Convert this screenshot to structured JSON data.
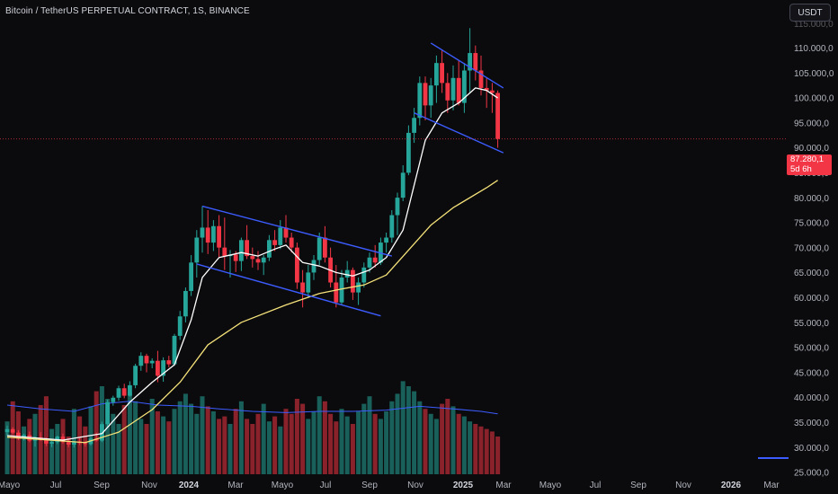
{
  "header": {
    "title": "Bitcoin / TetherUS PERPETUAL CONTRACT, 1S, BINANCE",
    "currency_button": "USDT"
  },
  "price_tag": {
    "price": "87.280,1",
    "countdown": "5d 6h",
    "color": "#f23645"
  },
  "colors": {
    "up": "#26a69a",
    "down": "#f23645",
    "ema_fast": "#ffffff",
    "ema_slow": "#f5e27a",
    "channel": "#3c5cff",
    "volume_ma": "#3c5cff"
  },
  "chart_data": {
    "type": "candlestick",
    "instrument": "Bitcoin / TetherUS PERPETUAL CONTRACT",
    "interval": "1S",
    "exchange": "BINANCE",
    "current_price": 87280.1,
    "y_axis_ticks": [
      "110.000,0",
      "105.000,0",
      "100.000,0",
      "95.000,0",
      "90.000,0",
      "85.000,0",
      "80.000,0",
      "75.000,0",
      "70.000,0",
      "65.000,0",
      "60.000,0",
      "55.000,0",
      "50.000,0",
      "45.000,0",
      "40.000,0",
      "35.000,0",
      "30.000,0",
      "25.000,0"
    ],
    "y_axis_partial_top": "115.000,0",
    "x_axis_ticks": [
      {
        "label": "Mayo",
        "bold": false
      },
      {
        "label": "Jul",
        "bold": false
      },
      {
        "label": "Sep",
        "bold": false
      },
      {
        "label": "Nov",
        "bold": false
      },
      {
        "label": "2024",
        "bold": true
      },
      {
        "label": "Mar",
        "bold": false
      },
      {
        "label": "Mayo",
        "bold": false
      },
      {
        "label": "Jul",
        "bold": false
      },
      {
        "label": "Sep",
        "bold": false
      },
      {
        "label": "Nov",
        "bold": false
      },
      {
        "label": "2025",
        "bold": true
      },
      {
        "label": "Mar",
        "bold": false
      },
      {
        "label": "Mayo",
        "bold": false
      },
      {
        "label": "Jul",
        "bold": false
      },
      {
        "label": "Sep",
        "bold": false
      },
      {
        "label": "Nov",
        "bold": false
      },
      {
        "label": "2026",
        "bold": true
      },
      {
        "label": "Mar",
        "bold": false
      }
    ],
    "candles": [
      {
        "x": 0,
        "o": 28500,
        "h": 29800,
        "l": 27800,
        "c": 29100
      },
      {
        "x": 1,
        "o": 29100,
        "h": 29500,
        "l": 28100,
        "c": 28400
      },
      {
        "x": 2,
        "o": 28400,
        "h": 28900,
        "l": 26900,
        "c": 27200
      },
      {
        "x": 3,
        "o": 27200,
        "h": 28200,
        "l": 26800,
        "c": 27900
      },
      {
        "x": 4,
        "o": 27900,
        "h": 28600,
        "l": 26500,
        "c": 26800
      },
      {
        "x": 5,
        "o": 26800,
        "h": 27600,
        "l": 25600,
        "c": 27400
      },
      {
        "x": 6,
        "o": 27400,
        "h": 28500,
        "l": 26700,
        "c": 26900
      },
      {
        "x": 7,
        "o": 26900,
        "h": 27400,
        "l": 25700,
        "c": 26200
      },
      {
        "x": 8,
        "o": 26200,
        "h": 26700,
        "l": 25500,
        "c": 26500
      },
      {
        "x": 9,
        "o": 26500,
        "h": 27800,
        "l": 26100,
        "c": 27600
      },
      {
        "x": 10,
        "o": 27600,
        "h": 28200,
        "l": 26200,
        "c": 26500
      },
      {
        "x": 11,
        "o": 26500,
        "h": 27000,
        "l": 25500,
        "c": 26000
      },
      {
        "x": 12,
        "o": 26000,
        "h": 26800,
        "l": 25400,
        "c": 26600
      },
      {
        "x": 13,
        "o": 26600,
        "h": 27300,
        "l": 25900,
        "c": 26300
      },
      {
        "x": 14,
        "o": 26300,
        "h": 26700,
        "l": 25600,
        "c": 26100
      },
      {
        "x": 15,
        "o": 26100,
        "h": 27500,
        "l": 25800,
        "c": 27200
      },
      {
        "x": 16,
        "o": 27200,
        "h": 28400,
        "l": 26600,
        "c": 26800
      },
      {
        "x": 17,
        "o": 26800,
        "h": 30600,
        "l": 26500,
        "c": 30100
      },
      {
        "x": 18,
        "o": 30100,
        "h": 35000,
        "l": 29600,
        "c": 34500
      },
      {
        "x": 19,
        "o": 34500,
        "h": 35800,
        "l": 33800,
        "c": 35400
      },
      {
        "x": 20,
        "o": 35400,
        "h": 37800,
        "l": 34800,
        "c": 37300
      },
      {
        "x": 21,
        "o": 37300,
        "h": 38200,
        "l": 35300,
        "c": 35800
      },
      {
        "x": 22,
        "o": 35800,
        "h": 38700,
        "l": 35600,
        "c": 37900
      },
      {
        "x": 23,
        "o": 37900,
        "h": 42200,
        "l": 37300,
        "c": 41800
      },
      {
        "x": 24,
        "o": 41800,
        "h": 44500,
        "l": 40800,
        "c": 43800
      },
      {
        "x": 25,
        "o": 43800,
        "h": 44200,
        "l": 40500,
        "c": 42300
      },
      {
        "x": 26,
        "o": 42300,
        "h": 43300,
        "l": 41300,
        "c": 42800
      },
      {
        "x": 27,
        "o": 42800,
        "h": 44800,
        "l": 38500,
        "c": 39800
      },
      {
        "x": 28,
        "o": 39800,
        "h": 43500,
        "l": 38600,
        "c": 42900
      },
      {
        "x": 29,
        "o": 42900,
        "h": 43800,
        "l": 41500,
        "c": 42100
      },
      {
        "x": 30,
        "o": 42100,
        "h": 48200,
        "l": 41800,
        "c": 47800
      },
      {
        "x": 31,
        "o": 47800,
        "h": 52800,
        "l": 47000,
        "c": 51700
      },
      {
        "x": 32,
        "o": 51700,
        "h": 57500,
        "l": 50500,
        "c": 56800
      },
      {
        "x": 33,
        "o": 56800,
        "h": 64000,
        "l": 55800,
        "c": 62500
      },
      {
        "x": 34,
        "o": 62500,
        "h": 69000,
        "l": 59500,
        "c": 67500
      },
      {
        "x": 35,
        "o": 67500,
        "h": 73800,
        "l": 64500,
        "c": 69500
      },
      {
        "x": 36,
        "o": 69500,
        "h": 73000,
        "l": 64200,
        "c": 66500
      },
      {
        "x": 37,
        "o": 66500,
        "h": 71000,
        "l": 64800,
        "c": 69800
      },
      {
        "x": 38,
        "o": 69800,
        "h": 72000,
        "l": 63500,
        "c": 65500
      },
      {
        "x": 39,
        "o": 65500,
        "h": 71500,
        "l": 61000,
        "c": 63800
      },
      {
        "x": 40,
        "o": 63800,
        "h": 65000,
        "l": 59500,
        "c": 64100
      },
      {
        "x": 41,
        "o": 64100,
        "h": 64800,
        "l": 60600,
        "c": 62800
      },
      {
        "x": 42,
        "o": 62800,
        "h": 67500,
        "l": 60800,
        "c": 67000
      },
      {
        "x": 43,
        "o": 67000,
        "h": 70000,
        "l": 63200,
        "c": 63800
      },
      {
        "x": 44,
        "o": 63800,
        "h": 65500,
        "l": 61500,
        "c": 63200
      },
      {
        "x": 45,
        "o": 63200,
        "h": 64800,
        "l": 61000,
        "c": 62500
      },
      {
        "x": 46,
        "o": 62500,
        "h": 64000,
        "l": 60000,
        "c": 63500
      },
      {
        "x": 47,
        "o": 63500,
        "h": 68000,
        "l": 62800,
        "c": 67000
      },
      {
        "x": 48,
        "o": 67000,
        "h": 69000,
        "l": 64800,
        "c": 66000
      },
      {
        "x": 49,
        "o": 66000,
        "h": 71000,
        "l": 65200,
        "c": 69500
      },
      {
        "x": 50,
        "o": 69500,
        "h": 72000,
        "l": 66500,
        "c": 67500
      },
      {
        "x": 51,
        "o": 67500,
        "h": 68500,
        "l": 64500,
        "c": 65500
      },
      {
        "x": 52,
        "o": 65500,
        "h": 66500,
        "l": 57200,
        "c": 58500
      },
      {
        "x": 53,
        "o": 58500,
        "h": 61000,
        "l": 53500,
        "c": 56500
      },
      {
        "x": 54,
        "o": 56500,
        "h": 62000,
        "l": 55500,
        "c": 60500
      },
      {
        "x": 55,
        "o": 60500,
        "h": 64000,
        "l": 59000,
        "c": 63000
      },
      {
        "x": 56,
        "o": 63000,
        "h": 68500,
        "l": 62000,
        "c": 67500
      },
      {
        "x": 57,
        "o": 67500,
        "h": 69800,
        "l": 62500,
        "c": 63500
      },
      {
        "x": 58,
        "o": 63500,
        "h": 65500,
        "l": 57500,
        "c": 58500
      },
      {
        "x": 59,
        "o": 58500,
        "h": 62000,
        "l": 53500,
        "c": 54500
      },
      {
        "x": 60,
        "o": 54500,
        "h": 61000,
        "l": 54000,
        "c": 59500
      },
      {
        "x": 61,
        "o": 59500,
        "h": 62800,
        "l": 58500,
        "c": 61000
      },
      {
        "x": 62,
        "o": 61000,
        "h": 61500,
        "l": 55000,
        "c": 56500
      },
      {
        "x": 63,
        "o": 56500,
        "h": 59500,
        "l": 54000,
        "c": 58500
      },
      {
        "x": 64,
        "o": 58500,
        "h": 62500,
        "l": 57500,
        "c": 61500
      },
      {
        "x": 65,
        "o": 61500,
        "h": 64500,
        "l": 60500,
        "c": 63500
      },
      {
        "x": 66,
        "o": 63500,
        "h": 66000,
        "l": 61500,
        "c": 62500
      },
      {
        "x": 67,
        "o": 62500,
        "h": 67500,
        "l": 62000,
        "c": 66500
      },
      {
        "x": 68,
        "o": 66500,
        "h": 68500,
        "l": 64500,
        "c": 67500
      },
      {
        "x": 69,
        "o": 67500,
        "h": 73000,
        "l": 66500,
        "c": 72000
      },
      {
        "x": 70,
        "o": 72000,
        "h": 76500,
        "l": 68000,
        "c": 75500
      },
      {
        "x": 71,
        "o": 75500,
        "h": 82000,
        "l": 74800,
        "c": 80500
      },
      {
        "x": 72,
        "o": 80500,
        "h": 90000,
        "l": 80000,
        "c": 88500
      },
      {
        "x": 73,
        "o": 88500,
        "h": 93500,
        "l": 86500,
        "c": 91500
      },
      {
        "x": 74,
        "o": 91500,
        "h": 99800,
        "l": 90000,
        "c": 98500
      },
      {
        "x": 75,
        "o": 98500,
        "h": 99800,
        "l": 91000,
        "c": 94000
      },
      {
        "x": 76,
        "o": 94000,
        "h": 99500,
        "l": 91500,
        "c": 98000
      },
      {
        "x": 77,
        "o": 98000,
        "h": 104000,
        "l": 94500,
        "c": 102500
      },
      {
        "x": 78,
        "o": 102500,
        "h": 105000,
        "l": 96500,
        "c": 98500
      },
      {
        "x": 79,
        "o": 98500,
        "h": 100500,
        "l": 92500,
        "c": 95000
      },
      {
        "x": 80,
        "o": 95000,
        "h": 102000,
        "l": 93000,
        "c": 99500
      },
      {
        "x": 81,
        "o": 99500,
        "h": 103000,
        "l": 94000,
        "c": 94500
      },
      {
        "x": 82,
        "o": 94500,
        "h": 102500,
        "l": 92500,
        "c": 101000
      },
      {
        "x": 83,
        "o": 101000,
        "h": 109500,
        "l": 96500,
        "c": 104500
      },
      {
        "x": 84,
        "o": 104500,
        "h": 106000,
        "l": 99000,
        "c": 101000
      },
      {
        "x": 85,
        "o": 101000,
        "h": 104000,
        "l": 96000,
        "c": 97500
      },
      {
        "x": 86,
        "o": 97500,
        "h": 99500,
        "l": 93500,
        "c": 97000
      },
      {
        "x": 87,
        "o": 97000,
        "h": 98500,
        "l": 92500,
        "c": 96500
      },
      {
        "x": 88,
        "o": 96500,
        "h": 97000,
        "l": 85500,
        "c": 87280
      }
    ],
    "ema_fast": [
      [
        0,
        27800
      ],
      [
        10,
        26900
      ],
      [
        17,
        28200
      ],
      [
        22,
        34500
      ],
      [
        26,
        38500
      ],
      [
        30,
        42000
      ],
      [
        33,
        51000
      ],
      [
        35,
        59500
      ],
      [
        38,
        63500
      ],
      [
        42,
        64500
      ],
      [
        45,
        63800
      ],
      [
        48,
        65200
      ],
      [
        50,
        66000
      ],
      [
        53,
        62500
      ],
      [
        56,
        61800
      ],
      [
        59,
        60500
      ],
      [
        62,
        59800
      ],
      [
        65,
        61000
      ],
      [
        68,
        63500
      ],
      [
        71,
        69000
      ],
      [
        73,
        78000
      ],
      [
        75,
        87000
      ],
      [
        78,
        92500
      ],
      [
        81,
        94500
      ],
      [
        84,
        97500
      ],
      [
        86,
        97000
      ],
      [
        88,
        95500
      ]
    ],
    "ema_slow": [
      [
        0,
        27500
      ],
      [
        14,
        26400
      ],
      [
        20,
        28500
      ],
      [
        26,
        33000
      ],
      [
        31,
        38500
      ],
      [
        36,
        46000
      ],
      [
        42,
        50500
      ],
      [
        50,
        54000
      ],
      [
        56,
        56300
      ],
      [
        60,
        57200
      ],
      [
        64,
        58000
      ],
      [
        68,
        60000
      ],
      [
        72,
        65000
      ],
      [
        76,
        70000
      ],
      [
        80,
        73500
      ],
      [
        86,
        77500
      ],
      [
        88,
        79000
      ]
    ],
    "channels": [
      {
        "name": "channel-2024-upper",
        "from": [
          35,
          73800
        ],
        "to": [
          69,
          63800
        ]
      },
      {
        "name": "channel-2024-lower",
        "from": [
          34,
          62200
        ],
        "to": [
          67,
          51800
        ]
      },
      {
        "name": "channel-2025-upper",
        "from": [
          76,
          106500
        ],
        "to": [
          89,
          97500
        ]
      },
      {
        "name": "channel-2025-lower",
        "from": [
          73,
          92500
        ],
        "to": [
          89,
          84500
        ]
      }
    ],
    "volumes": [
      42,
      58,
      50,
      38,
      44,
      48,
      55,
      62,
      36,
      40,
      44,
      30,
      52,
      46,
      38,
      54,
      66,
      70,
      60,
      48,
      40,
      55,
      65,
      58,
      44,
      40,
      60,
      50,
      46,
      42,
      52,
      58,
      64,
      56,
      48,
      62,
      54,
      50,
      44,
      46,
      40,
      52,
      58,
      44,
      40,
      48,
      56,
      42,
      46,
      38,
      52,
      48,
      60,
      56,
      44,
      50,
      62,
      58,
      48,
      42,
      52,
      46,
      40,
      50,
      56,
      62,
      48,
      44,
      50,
      58,
      64,
      74,
      70,
      66,
      58,
      52,
      48,
      44,
      56,
      60,
      54,
      48,
      46,
      42,
      40,
      38,
      36,
      34,
      30
    ],
    "volume_ma": [
      [
        0,
        55
      ],
      [
        6,
        52
      ],
      [
        12,
        50
      ],
      [
        17,
        56
      ],
      [
        22,
        58
      ],
      [
        27,
        55
      ],
      [
        33,
        54
      ],
      [
        38,
        52
      ],
      [
        44,
        50
      ],
      [
        50,
        49
      ],
      [
        56,
        50
      ],
      [
        62,
        50
      ],
      [
        68,
        51
      ],
      [
        74,
        54
      ],
      [
        80,
        52
      ],
      [
        85,
        50
      ],
      [
        88,
        48
      ]
    ],
    "ylim": [
      25000,
      116000
    ],
    "grid": false
  }
}
